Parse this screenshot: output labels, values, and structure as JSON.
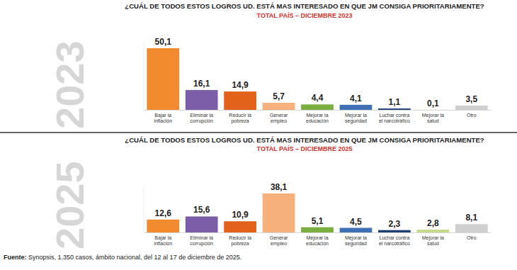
{
  "chart_data": [
    {
      "type": "bar",
      "title": "¿CUÁL DE TODOS ESTOS LOGROS UD. ESTÁ MAS INTERESADO EN QUE JM CONSIGA PRIORITARIAMENTE?",
      "subtitle": "TOTAL PAÍS – DICIEMBRE 2023",
      "annotation": "2023",
      "categories": [
        "Bajar la\ninflación",
        "Eliminar la\ncorrupción",
        "Reducir la\npobreza",
        "Generar\nempleo",
        "Mejorar la\neducación",
        "Mejorar la\nseguridad",
        "Luchar contra\nel narcotráfico",
        "Mejorar la\nsalud",
        "Otro"
      ],
      "values": [
        50.1,
        16.1,
        14.9,
        5.7,
        4.4,
        4.1,
        1.1,
        0.1,
        3.5
      ],
      "value_labels": [
        "50,1",
        "16,1",
        "14,9",
        "5,7",
        "4,4",
        "4,1",
        "1,1",
        "0,1",
        "3,5"
      ],
      "colors": [
        "#f28a2e",
        "#7b5ea7",
        "#e2621b",
        "#f6b07c",
        "#7aae3f",
        "#3f6fb5",
        "#1f3f73",
        "#c6dc8c",
        "#cfcfcf"
      ],
      "ylim": [
        0,
        55
      ],
      "data_labels": true,
      "tick_labels": "x"
    },
    {
      "type": "bar",
      "title": "¿CUÁL DE TODOS ESTOS LOGROS UD. ESTÁ MAS INTERESADO EN QUE JM CONSIGA PRIORITARIAMENTE?",
      "subtitle": "TOTAL PAÍS – DICIEMBRE 2025",
      "annotation": "2025",
      "categories": [
        "Bajar la\ninflación",
        "Eliminar la\ncorrupción",
        "Reducir la\npobreza",
        "Generar\nempleo",
        "Mejorar la\neducación",
        "Mejorar la\nseguridad",
        "Luchar contra\nel narcotráfico",
        "Mejorar la\nsalud",
        "Otro"
      ],
      "values": [
        12.6,
        15.6,
        10.9,
        38.1,
        5.1,
        4.5,
        2.3,
        2.8,
        8.1
      ],
      "value_labels": [
        "12,6",
        "15,6",
        "10,9",
        "38,1",
        "5,1",
        "4,5",
        "2,3",
        "2,8",
        "8,1"
      ],
      "colors": [
        "#f28a2e",
        "#7b5ea7",
        "#e2621b",
        "#f6b07c",
        "#7aae3f",
        "#3f6fb5",
        "#1f3f73",
        "#c6dc8c",
        "#cfcfcf"
      ],
      "ylim": [
        0,
        45
      ],
      "data_labels": true,
      "tick_labels": "x"
    }
  ],
  "source": "Fuente: Synopsis, 1.350 casos, ámbito nacional, del 12 al 17 de diciembre de 2025."
}
